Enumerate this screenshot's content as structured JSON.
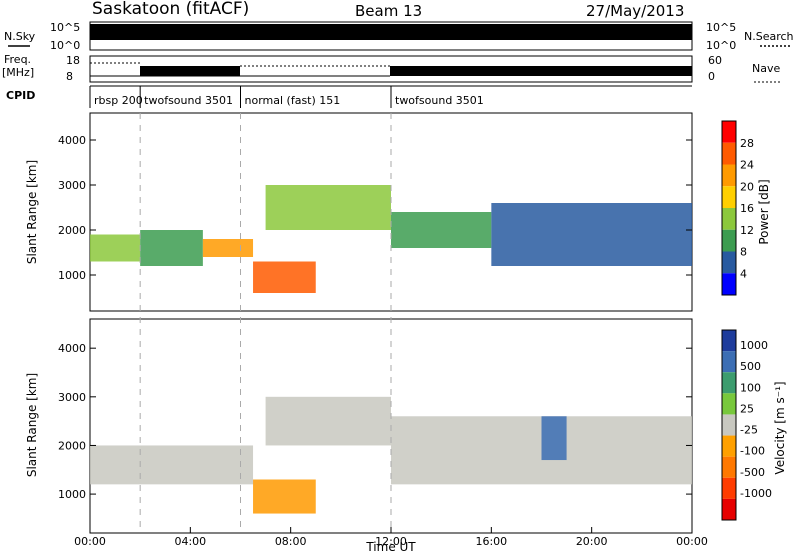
{
  "header": {
    "title": "Saskatoon (fitACF)",
    "beam": "Beam 13",
    "date": "27/May/2013"
  },
  "summary_panels": {
    "nsky_label": "N.Sky",
    "nsky_ticks": [
      "10^5",
      "10^0"
    ],
    "nsearch_label": "N.Search",
    "nsearch_ticks": [
      "10^5",
      "10^0"
    ],
    "freq_label": "Freq.",
    "freq_unit": "[MHz]",
    "freq_ticks": [
      "18",
      "8"
    ],
    "nave_label": "Nave",
    "nave_ticks": [
      "60",
      "0"
    ],
    "cpid_label": "CPID"
  },
  "cpid_segments": [
    {
      "label": "rbsp 200",
      "start_hour": 0
    },
    {
      "label": "twofsound 3501",
      "start_hour": 2
    },
    {
      "label": "normal (fast) 151",
      "start_hour": 6
    },
    {
      "label": "twofsound 3501",
      "start_hour": 12
    }
  ],
  "power_colorbar": {
    "title": "Power [dB]",
    "ticks": [
      "28",
      "24",
      "20",
      "16",
      "12",
      "8",
      "4"
    ],
    "colors": [
      "#ff0000",
      "#ff5a00",
      "#ff9a00",
      "#ffcf00",
      "#8cc83c",
      "#3c9c50",
      "#285aa0",
      "#0000ff"
    ]
  },
  "velocity_colorbar": {
    "title": "Velocity [m s⁻¹]",
    "ticks": [
      "1000",
      "500",
      "100",
      "25",
      "-25",
      "-100",
      "-500",
      "-1000"
    ],
    "colors": [
      "#1e3c9c",
      "#3c6eb4",
      "#3c9c6e",
      "#78c83c",
      "#c8c8c0",
      "#ffa000",
      "#ff7800",
      "#ff3c00",
      "#e60000"
    ]
  },
  "chart_data": [
    {
      "type": "heatmap",
      "panel": "power",
      "ylabel": "Slant Range [km]",
      "yticks": [
        "1000",
        "2000",
        "3000",
        "4000"
      ],
      "ylim": [
        200,
        4600
      ],
      "xlim": [
        0,
        24
      ],
      "regions": [
        {
          "t0": 0.0,
          "t1": 2.0,
          "r0": 1300,
          "r1": 1900,
          "level": 16
        },
        {
          "t0": 2.0,
          "t1": 4.5,
          "r0": 1200,
          "r1": 2000,
          "level": 12
        },
        {
          "t0": 4.5,
          "t1": 6.5,
          "r0": 1400,
          "r1": 1800,
          "level": 24
        },
        {
          "t0": 6.5,
          "t1": 9.0,
          "r0": 600,
          "r1": 1300,
          "level": 28
        },
        {
          "t0": 7.0,
          "t1": 12.0,
          "r0": 2000,
          "r1": 3000,
          "level": 16
        },
        {
          "t0": 12.0,
          "t1": 16.0,
          "r0": 1600,
          "r1": 2400,
          "level": 12
        },
        {
          "t0": 16.0,
          "t1": 24.0,
          "r0": 1200,
          "r1": 2600,
          "level": 8
        }
      ]
    },
    {
      "type": "heatmap",
      "panel": "velocity",
      "xlabel": "Time UT",
      "ylabel": "Slant Range [km]",
      "yticks": [
        "1000",
        "2000",
        "3000",
        "4000"
      ],
      "xticks": [
        "00:00",
        "04:00",
        "08:00",
        "12:00",
        "16:00",
        "20:00",
        "00:00"
      ],
      "ylim": [
        200,
        4600
      ],
      "xlim": [
        0,
        24
      ],
      "regions": [
        {
          "t0": 0.0,
          "t1": 6.5,
          "r0": 1200,
          "r1": 2000,
          "velocity": 0
        },
        {
          "t0": 6.5,
          "t1": 9.0,
          "r0": 600,
          "r1": 1300,
          "velocity": -300
        },
        {
          "t0": 7.0,
          "t1": 12.0,
          "r0": 2000,
          "r1": 3000,
          "velocity": 0
        },
        {
          "t0": 12.0,
          "t1": 24.0,
          "r0": 1200,
          "r1": 2600,
          "velocity": 0
        },
        {
          "t0": 18.0,
          "t1": 19.0,
          "r0": 1700,
          "r1": 2600,
          "velocity": 300
        }
      ]
    }
  ]
}
